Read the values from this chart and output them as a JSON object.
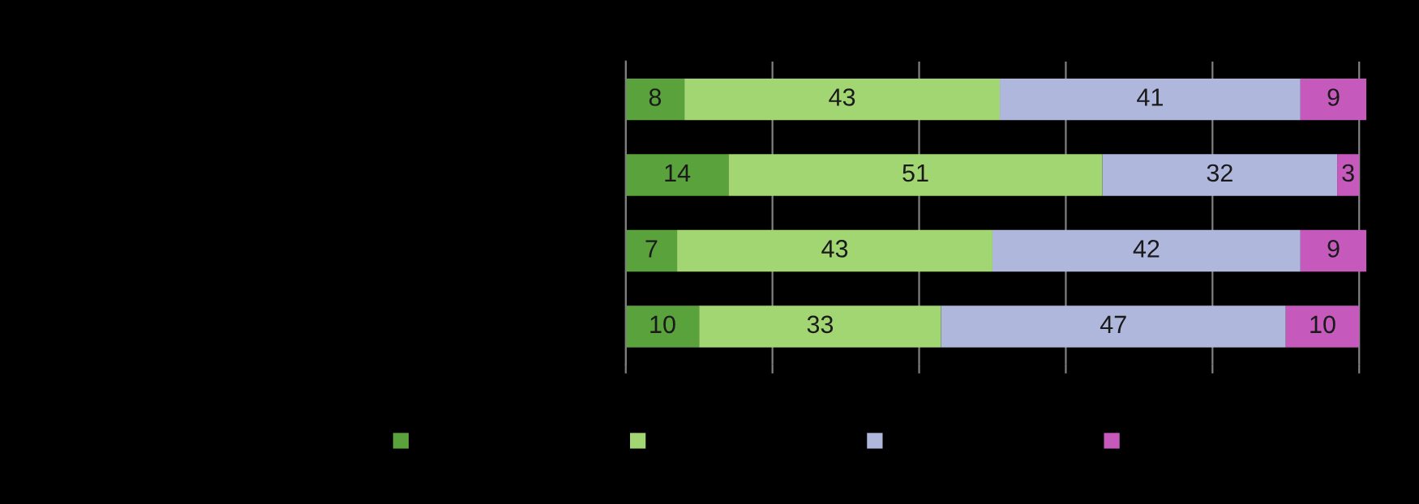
{
  "chart_data": {
    "type": "bar",
    "orientation": "horizontal",
    "stacked": true,
    "categories": [
      null,
      null,
      null,
      null
    ],
    "series": [
      {
        "color": "#5aa33c",
        "values": [
          8,
          14,
          7,
          10
        ]
      },
      {
        "color": "#a2d672",
        "values": [
          43,
          51,
          43,
          33
        ]
      },
      {
        "color": "#afb8dc",
        "values": [
          41,
          32,
          42,
          47
        ]
      },
      {
        "color": "#c659bc",
        "values": [
          9,
          3,
          9,
          10
        ]
      }
    ],
    "xlim": [
      0,
      101
    ],
    "xticks": [
      0,
      20,
      40,
      60,
      80,
      100
    ],
    "grid": "x",
    "tick_labels": false,
    "data_labels": true
  }
}
